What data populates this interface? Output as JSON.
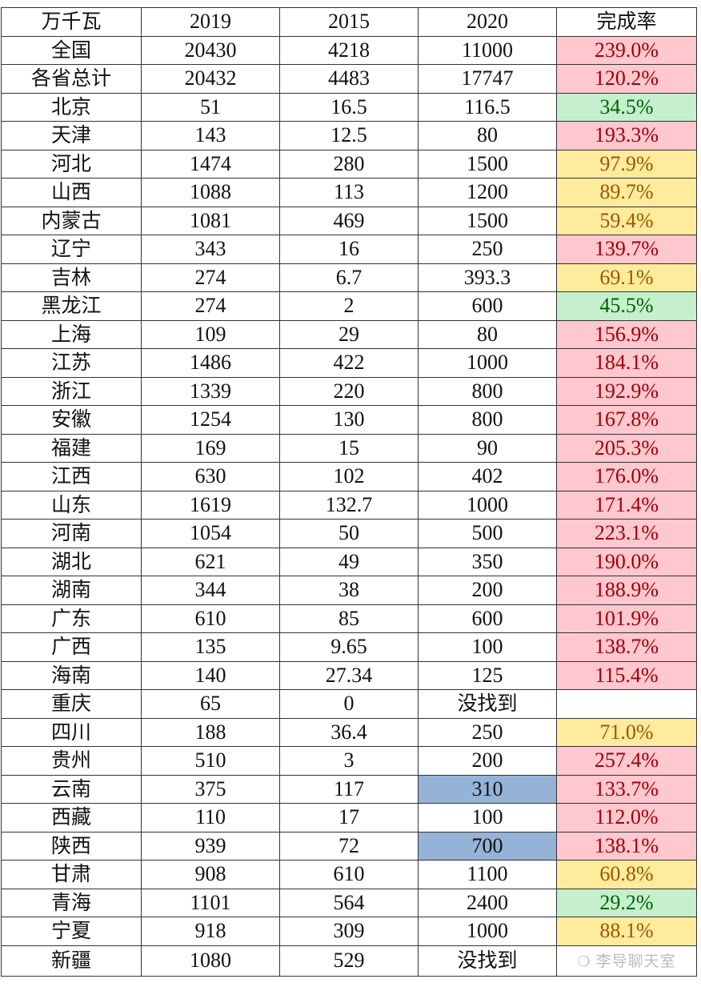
{
  "header": [
    "万千瓦",
    "2019",
    "2015",
    "2020",
    "完成率"
  ],
  "rows": [
    {
      "region": "全国",
      "y2019": "20430",
      "y2015": "4218",
      "y2020": "11000",
      "rate": "239.0%",
      "rate_color": "red"
    },
    {
      "region": "各省总计",
      "y2019": "20432",
      "y2015": "4483",
      "y2020": "17747",
      "rate": "120.2%",
      "rate_color": "red"
    },
    {
      "region": "北京",
      "y2019": "51",
      "y2015": "16.5",
      "y2020": "116.5",
      "rate": "34.5%",
      "rate_color": "green"
    },
    {
      "region": "天津",
      "y2019": "143",
      "y2015": "12.5",
      "y2020": "80",
      "rate": "193.3%",
      "rate_color": "red"
    },
    {
      "region": "河北",
      "y2019": "1474",
      "y2015": "280",
      "y2020": "1500",
      "rate": "97.9%",
      "rate_color": "yellow"
    },
    {
      "region": "山西",
      "y2019": "1088",
      "y2015": "113",
      "y2020": "1200",
      "rate": "89.7%",
      "rate_color": "yellow"
    },
    {
      "region": "内蒙古",
      "y2019": "1081",
      "y2015": "469",
      "y2020": "1500",
      "rate": "59.4%",
      "rate_color": "yellow"
    },
    {
      "region": "辽宁",
      "y2019": "343",
      "y2015": "16",
      "y2020": "250",
      "rate": "139.7%",
      "rate_color": "red"
    },
    {
      "region": "吉林",
      "y2019": "274",
      "y2015": "6.7",
      "y2020": "393.3",
      "rate": "69.1%",
      "rate_color": "yellow"
    },
    {
      "region": "黑龙江",
      "y2019": "274",
      "y2015": "2",
      "y2020": "600",
      "rate": "45.5%",
      "rate_color": "green"
    },
    {
      "region": "上海",
      "y2019": "109",
      "y2015": "29",
      "y2020": "80",
      "rate": "156.9%",
      "rate_color": "red"
    },
    {
      "region": "江苏",
      "y2019": "1486",
      "y2015": "422",
      "y2020": "1000",
      "rate": "184.1%",
      "rate_color": "red"
    },
    {
      "region": "浙江",
      "y2019": "1339",
      "y2015": "220",
      "y2020": "800",
      "rate": "192.9%",
      "rate_color": "red"
    },
    {
      "region": "安徽",
      "y2019": "1254",
      "y2015": "130",
      "y2020": "800",
      "rate": "167.8%",
      "rate_color": "red"
    },
    {
      "region": "福建",
      "y2019": "169",
      "y2015": "15",
      "y2020": "90",
      "rate": "205.3%",
      "rate_color": "red"
    },
    {
      "region": "江西",
      "y2019": "630",
      "y2015": "102",
      "y2020": "402",
      "rate": "176.0%",
      "rate_color": "red"
    },
    {
      "region": "山东",
      "y2019": "1619",
      "y2015": "132.7",
      "y2020": "1000",
      "rate": "171.4%",
      "rate_color": "red"
    },
    {
      "region": "河南",
      "y2019": "1054",
      "y2015": "50",
      "y2020": "500",
      "rate": "223.1%",
      "rate_color": "red"
    },
    {
      "region": "湖北",
      "y2019": "621",
      "y2015": "49",
      "y2020": "350",
      "rate": "190.0%",
      "rate_color": "red"
    },
    {
      "region": "湖南",
      "y2019": "344",
      "y2015": "38",
      "y2020": "200",
      "rate": "188.9%",
      "rate_color": "red"
    },
    {
      "region": "广东",
      "y2019": "610",
      "y2015": "85",
      "y2020": "600",
      "rate": "101.9%",
      "rate_color": "red"
    },
    {
      "region": "广西",
      "y2019": "135",
      "y2015": "9.65",
      "y2020": "100",
      "rate": "138.7%",
      "rate_color": "red"
    },
    {
      "region": "海南",
      "y2019": "140",
      "y2015": "27.34",
      "y2020": "125",
      "rate": "115.4%",
      "rate_color": "red"
    },
    {
      "region": "重庆",
      "y2019": "65",
      "y2015": "0",
      "y2020": "没找到",
      "rate": "",
      "rate_color": ""
    },
    {
      "region": "四川",
      "y2019": "188",
      "y2015": "36.4",
      "y2020": "250",
      "rate": "71.0%",
      "rate_color": "yellow"
    },
    {
      "region": "贵州",
      "y2019": "510",
      "y2015": "3",
      "y2020": "200",
      "rate": "257.4%",
      "rate_color": "red"
    },
    {
      "region": "云南",
      "y2019": "375",
      "y2015": "117",
      "y2020": "310",
      "y2020_highlight": "blue",
      "rate": "133.7%",
      "rate_color": "red"
    },
    {
      "region": "西藏",
      "y2019": "110",
      "y2015": "17",
      "y2020": "100",
      "rate": "112.0%",
      "rate_color": "red"
    },
    {
      "region": "陕西",
      "y2019": "939",
      "y2015": "72",
      "y2020": "700",
      "y2020_highlight": "blue",
      "rate": "138.1%",
      "rate_color": "red"
    },
    {
      "region": "甘肃",
      "y2019": "908",
      "y2015": "610",
      "y2020": "1100",
      "rate": "60.8%",
      "rate_color": "yellow"
    },
    {
      "region": "青海",
      "y2019": "1101",
      "y2015": "564",
      "y2020": "2400",
      "rate": "29.2%",
      "rate_color": "green"
    },
    {
      "region": "宁夏",
      "y2019": "918",
      "y2015": "309",
      "y2020": "1000",
      "rate": "88.1%",
      "rate_color": "yellow"
    },
    {
      "region": "新疆",
      "y2019": "1080",
      "y2015": "529",
      "y2020": "没找到",
      "rate": "",
      "rate_color": ""
    }
  ],
  "watermark": {
    "text": "李导聊天室",
    "icon": "wechat-icon"
  },
  "colors": {
    "red_bg": "#FFC7CE",
    "red_text": "#9C0006",
    "green_bg": "#C6EFCE",
    "green_text": "#006100",
    "yellow_bg": "#FFEB9C",
    "yellow_text": "#9C5700",
    "blue_bg": "#95B3D7"
  }
}
